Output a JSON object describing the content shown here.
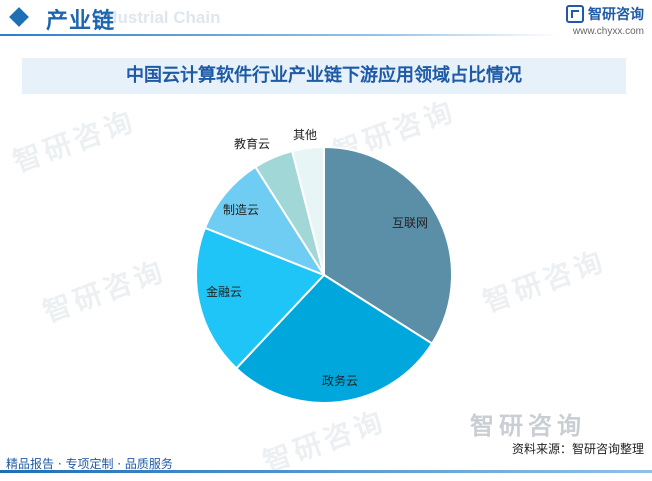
{
  "header": {
    "title": "产业链",
    "subtitle": "Industrial Chain",
    "brand": "智研咨询",
    "url": "www.chyxx.com"
  },
  "watermark": "智研咨询",
  "chart_data": {
    "type": "pie",
    "title": "中国云计算软件行业产业链下游应用领域占比情况",
    "slices": [
      {
        "label": "互联网",
        "value": 34,
        "color": "#5b8fa8"
      },
      {
        "label": "政务云",
        "value": 28,
        "color": "#00a7dd"
      },
      {
        "label": "金融云",
        "value": 19,
        "color": "#20c5f7"
      },
      {
        "label": "制造云",
        "value": 10,
        "color": "#6fcdf4"
      },
      {
        "label": "教育云",
        "value": 5,
        "color": "#a1d7d6"
      },
      {
        "label": "其他",
        "value": 4,
        "color": "#e8f5f7"
      }
    ]
  },
  "footer": {
    "services": "精品报告 · 专项定制 · 品质服务",
    "source": "资料来源：智研咨询整理"
  }
}
